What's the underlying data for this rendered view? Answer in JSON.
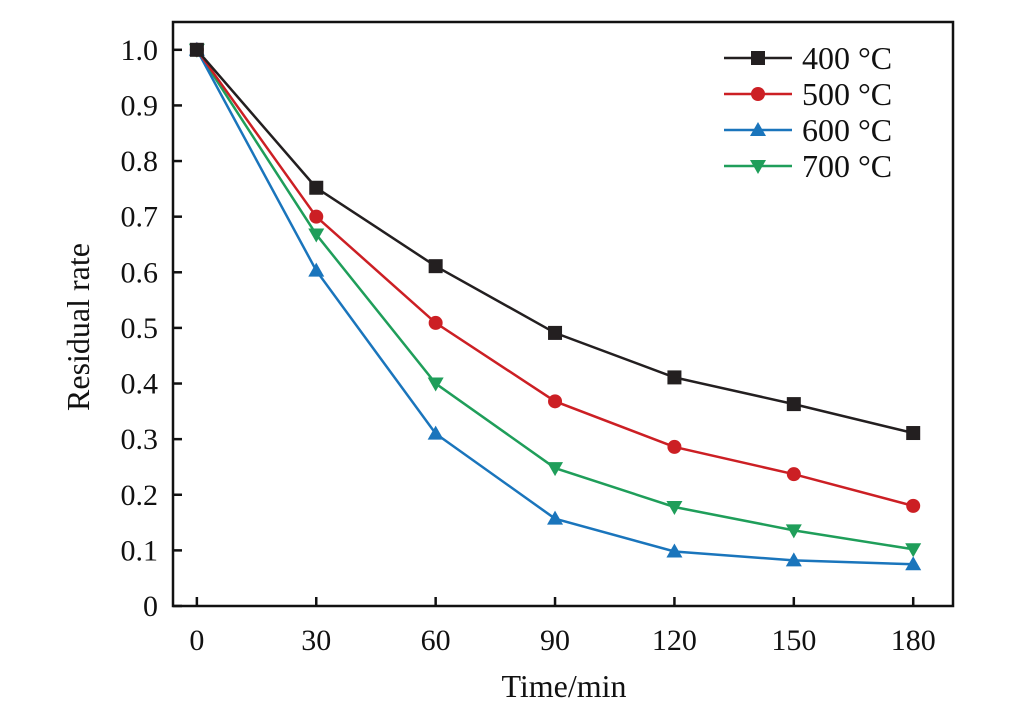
{
  "chart_data": {
    "type": "line",
    "xlabel": "Time/min",
    "ylabel": "Residual rate",
    "x": [
      0,
      30,
      60,
      90,
      120,
      150,
      180
    ],
    "xlim": [
      -6,
      190
    ],
    "ylim": [
      0,
      1.05
    ],
    "x_ticks": [
      "0",
      "30",
      "60",
      "90",
      "120",
      "150",
      "180"
    ],
    "y_ticks": [
      "0",
      "0.1",
      "0.2",
      "0.3",
      "0.4",
      "0.5",
      "0.6",
      "0.7",
      "0.8",
      "0.9",
      "1.0"
    ],
    "grid": false,
    "legend_position": "top-right",
    "series": [
      {
        "name": "400 °C",
        "color": "#231f20",
        "marker": "square",
        "values": [
          1.0,
          0.752,
          0.611,
          0.491,
          0.411,
          0.363,
          0.311
        ]
      },
      {
        "name": "500 °C",
        "color": "#cc1f24",
        "marker": "circle",
        "values": [
          1.0,
          0.7,
          0.509,
          0.368,
          0.286,
          0.237,
          0.18
        ]
      },
      {
        "name": "600 °C",
        "color": "#1a75bc",
        "marker": "triangle-up",
        "values": [
          1.0,
          0.603,
          0.31,
          0.157,
          0.098,
          0.082,
          0.075
        ]
      },
      {
        "name": "700 °C",
        "color": "#1f9e5a",
        "marker": "triangle-down",
        "values": [
          1.0,
          0.668,
          0.4,
          0.248,
          0.178,
          0.136,
          0.102
        ]
      }
    ]
  }
}
